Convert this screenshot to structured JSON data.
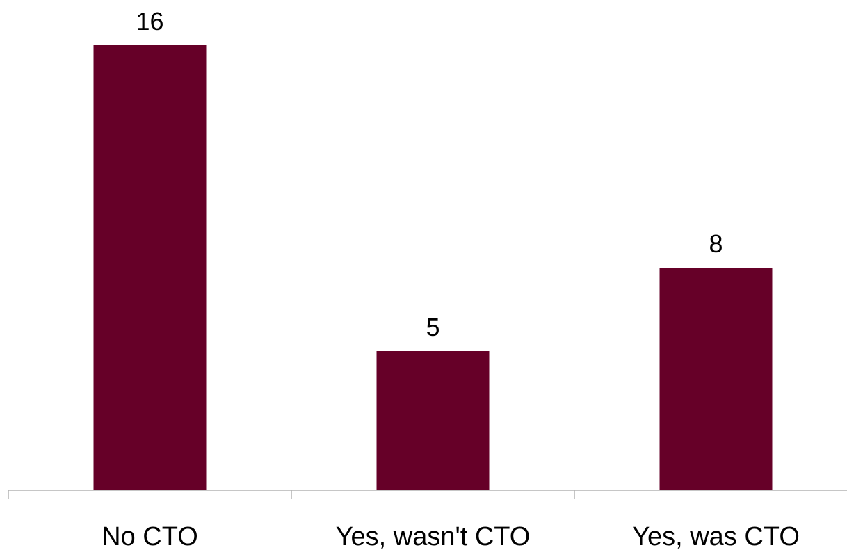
{
  "chart_data": {
    "type": "bar",
    "categories": [
      "No CTO",
      "Yes, wasn't CTO",
      "Yes, was CTO"
    ],
    "values": [
      16,
      5,
      8
    ],
    "data_labels": [
      "16",
      "5",
      "8"
    ],
    "title": "",
    "xlabel": "",
    "ylabel": "",
    "ylim": [
      0,
      16
    ],
    "grid": false,
    "legend": "none",
    "bar_color": "#660028",
    "axis_color": "#b3b3b3"
  }
}
